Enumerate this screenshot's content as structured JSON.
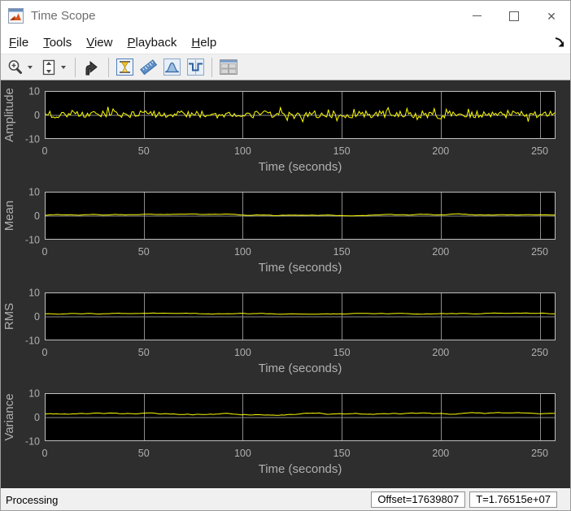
{
  "window": {
    "title": "Time Scope",
    "icon": "matlab-scope-icon",
    "controls": [
      {
        "name": "minimize-button",
        "icon": "minimize-icon"
      },
      {
        "name": "maximize-button",
        "icon": "maximize-icon"
      },
      {
        "name": "close-button",
        "icon": "close-icon",
        "glyph": "✕"
      }
    ]
  },
  "menu": {
    "items": [
      {
        "label": "File",
        "mnemonic": "F"
      },
      {
        "label": "Tools",
        "mnemonic": "T"
      },
      {
        "label": "View",
        "mnemonic": "V"
      },
      {
        "label": "Playback",
        "mnemonic": "P"
      },
      {
        "label": "Help",
        "mnemonic": "H"
      }
    ],
    "dock_icon": "undock-arrow-icon"
  },
  "toolbar": {
    "buttons": [
      {
        "icon": "zoom-in-icon",
        "dropdown": true
      },
      {
        "icon": "scale-y-axis-icon",
        "dropdown": true
      },
      {
        "icon": "step-forward-icon",
        "dropdown": false
      },
      {
        "icon": "trigger-icon",
        "dropdown": false
      },
      {
        "icon": "cursor-measurements-icon",
        "dropdown": false
      },
      {
        "icon": "signal-statistics-icon",
        "dropdown": false
      },
      {
        "icon": "bilevel-measurements-icon",
        "dropdown": false
      },
      {
        "icon": "layout-grid-icon",
        "dropdown": false
      }
    ]
  },
  "colors": {
    "scope_background": "#2e2e2e",
    "plot_background": "#000000",
    "grid_line": "#8c8c8c",
    "axis_border": "#bfbfbf",
    "axis_text": "#b0b0b0",
    "trace": "#ffff00"
  },
  "chart_data": [
    {
      "type": "line",
      "ylabel": "Amplitude",
      "xlabel": "Time (seconds)",
      "xlim": [
        0,
        258
      ],
      "ylim": [
        -10,
        10
      ],
      "yticks": [
        10,
        0,
        -10
      ],
      "xticks": [
        0,
        50,
        100,
        150,
        200,
        250
      ],
      "grid": true,
      "line_color": "#ffff00",
      "signal": {
        "seed": 101,
        "n": 300,
        "t_end": 258,
        "base": 0.25,
        "noise": 1.5,
        "smooth": 0,
        "smooth_gain": 1,
        "spike_chance": 0.15,
        "spike_gain": 2.1
      }
    },
    {
      "type": "line",
      "ylabel": "Mean",
      "xlabel": "Time (seconds)",
      "xlim": [
        0,
        258
      ],
      "ylim": [
        -10,
        10
      ],
      "yticks": [
        10,
        0,
        -10
      ],
      "xticks": [
        0,
        50,
        100,
        150,
        200,
        250
      ],
      "grid": true,
      "line_color": "#ffff00",
      "signal": {
        "seed": 202,
        "n": 160,
        "t_end": 258,
        "base": 0.3,
        "noise": 0.5,
        "smooth": 0.85,
        "smooth_gain": 2,
        "spike_chance": 0,
        "spike_gain": 1
      }
    },
    {
      "type": "line",
      "ylabel": "RMS",
      "xlabel": "Time (seconds)",
      "xlim": [
        0,
        258
      ],
      "ylim": [
        -10,
        10
      ],
      "yticks": [
        10,
        0,
        -10
      ],
      "xticks": [
        0,
        50,
        100,
        150,
        200,
        250
      ],
      "grid": true,
      "line_color": "#ffff00",
      "signal": {
        "seed": 303,
        "n": 160,
        "t_end": 258,
        "base": 1.1,
        "noise": 0.5,
        "smooth": 0.85,
        "smooth_gain": 1.5,
        "spike_chance": 0,
        "spike_gain": 1
      }
    },
    {
      "type": "line",
      "ylabel": "Variance",
      "xlabel": "Time (seconds)",
      "xlim": [
        0,
        258
      ],
      "ylim": [
        -10,
        10
      ],
      "yticks": [
        10,
        0,
        -10
      ],
      "xticks": [
        0,
        50,
        100,
        150,
        200,
        250
      ],
      "grid": true,
      "line_color": "#ffff00",
      "signal": {
        "seed": 404,
        "n": 180,
        "t_end": 258,
        "base": 1.3,
        "noise": 0.9,
        "smooth": 0.9,
        "smooth_gain": 2,
        "spike_chance": 0,
        "spike_gain": 1
      }
    }
  ],
  "statusbar": {
    "status": "Processing",
    "offset": "Offset=17639807",
    "sim_time": "T=1.76515e+07"
  }
}
